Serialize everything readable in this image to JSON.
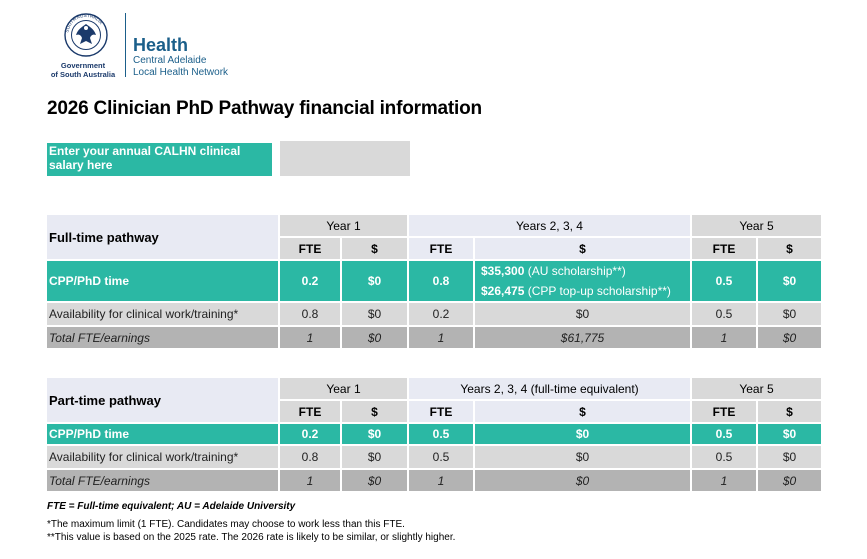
{
  "logo": {
    "crest_ring_text": "SOUTH AUSTRALIA",
    "gov_line1": "Government",
    "gov_line2": "of South Australia",
    "health": "Health",
    "calhn_line1": "Central Adelaide",
    "calhn_line2": "Local Health Network",
    "brand_color": "#1b5f8a"
  },
  "title": "2026 Clinician PhD Pathway financial information",
  "salary": {
    "label": "Enter your annual CALHN clinical salary here",
    "value": "",
    "placeholder": ""
  },
  "colors": {
    "teal": "#2bb8a4",
    "grey": "#d9d9d9",
    "total_grey": "#b3b3b3",
    "header_blue": "#e8eaf3"
  },
  "fulltime": {
    "label": "Full-time pathway",
    "year1": "Year 1",
    "years234": "Years 2, 3, 4",
    "year5": "Year 5",
    "fte": "FTE",
    "dollar": "$",
    "cpp": {
      "label": "CPP/PhD time",
      "y1_fte": "0.2",
      "y1_d": "$0",
      "y234_fte": "0.8",
      "line1_amount": "$35,300",
      "line1_note": " (AU scholarship**)",
      "line2_amount": "$26,475",
      "line2_note": " (CPP top-up scholarship**)",
      "y5_fte": "0.5",
      "y5_d": "$0"
    },
    "avail": {
      "label": "Availability for clinical work/training*",
      "y1_fte": "0.8",
      "y1_d": "$0",
      "y234_fte": "0.2",
      "y234_d": "$0",
      "y5_fte": "0.5",
      "y5_d": "$0"
    },
    "total": {
      "label": "Total FTE/earnings",
      "y1_fte": "1",
      "y1_d": "$0",
      "y234_fte": "1",
      "y234_d": "$61,775",
      "y5_fte": "1",
      "y5_d": "$0"
    }
  },
  "parttime": {
    "label": "Part-time pathway",
    "year1": "Year 1",
    "years234": "Years 2, 3, 4",
    "years234_note": " (full-time equivalent)",
    "year5": "Year 5",
    "fte": "FTE",
    "dollar": "$",
    "cpp": {
      "label": "CPP/PhD time",
      "y1_fte": "0.2",
      "y1_d": "$0",
      "y234_fte": "0.5",
      "y234_d": "$0",
      "y5_fte": "0.5",
      "y5_d": "$0"
    },
    "avail": {
      "label": "Availability for clinical work/training*",
      "y1_fte": "0.8",
      "y1_d": "$0",
      "y234_fte": "0.5",
      "y234_d": "$0",
      "y5_fte": "0.5",
      "y5_d": "$0"
    },
    "total": {
      "label": "Total FTE/earnings",
      "y1_fte": "1",
      "y1_d": "$0",
      "y234_fte": "1",
      "y234_d": "$0",
      "y5_fte": "1",
      "y5_d": "$0"
    }
  },
  "footnotes": {
    "abbrev": "FTE = Full-time equivalent; AU = Adelaide University",
    "note1": "*The maximum limit (1 FTE). Candidates may choose to work less than this FTE.",
    "note2": "**This value is based on the 2025 rate. The 2026 rate is likely to be similar, or slightly higher."
  }
}
